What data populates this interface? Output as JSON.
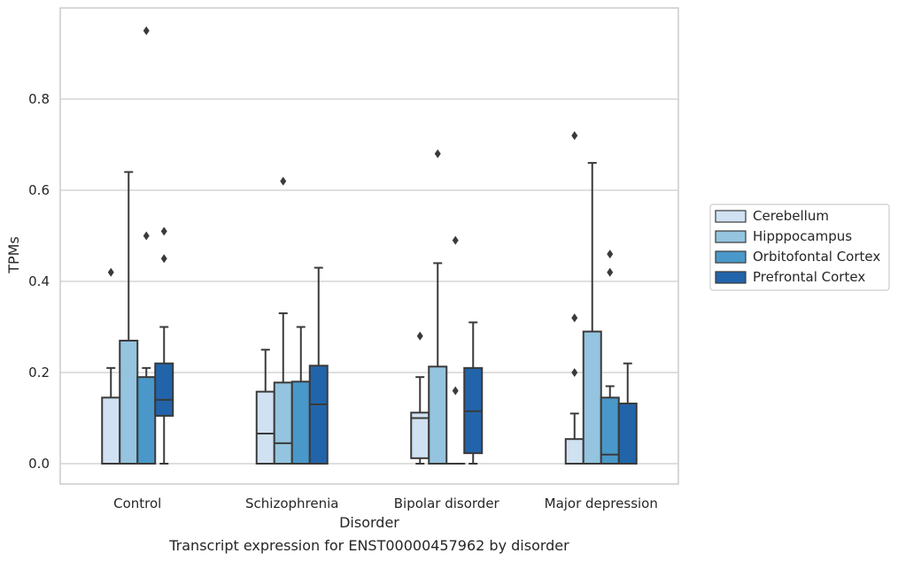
{
  "chart_data": {
    "type": "boxplot",
    "caption": "Transcript expression for ENST00000457962 by disorder",
    "xlabel": "Disorder",
    "ylabel": "TPMs",
    "ylim": [
      -0.045,
      0.995
    ],
    "yticks": [
      0.0,
      0.2,
      0.4,
      0.6,
      0.8
    ],
    "ytick_labels": [
      "0.0",
      "0.2",
      "0.4",
      "0.6",
      "0.8"
    ],
    "grid": "horizontal",
    "legend_position": "right",
    "categories": [
      "Control",
      "Schizophrenia",
      "Bipolar disorder",
      "Major depression"
    ],
    "series": [
      {
        "name": "Cerebellum",
        "color": "#d0e1f2",
        "boxes": [
          {
            "q1": 0.0,
            "median": 0.0,
            "q3": 0.145,
            "whisker_low": 0.0,
            "whisker_high": 0.21,
            "outliers": [
              0.42
            ]
          },
          {
            "q1": 0.0,
            "median": 0.066,
            "q3": 0.158,
            "whisker_low": 0.0,
            "whisker_high": 0.25,
            "outliers": []
          },
          {
            "q1": 0.012,
            "median": 0.1,
            "q3": 0.112,
            "whisker_low": 0.0,
            "whisker_high": 0.19,
            "outliers": [
              0.28
            ]
          },
          {
            "q1": 0.0,
            "median": 0.0,
            "q3": 0.054,
            "whisker_low": 0.0,
            "whisker_high": 0.11,
            "outliers": [
              0.2,
              0.32,
              0.72
            ]
          }
        ]
      },
      {
        "name": "Hipppocampus",
        "color": "#94c4df",
        "boxes": [
          {
            "q1": 0.0,
            "median": 0.0,
            "q3": 0.27,
            "whisker_low": 0.0,
            "whisker_high": 0.64,
            "outliers": []
          },
          {
            "q1": 0.0,
            "median": 0.045,
            "q3": 0.178,
            "whisker_low": 0.0,
            "whisker_high": 0.33,
            "outliers": [
              0.62
            ]
          },
          {
            "q1": 0.0,
            "median": 0.0,
            "q3": 0.213,
            "whisker_low": 0.0,
            "whisker_high": 0.44,
            "outliers": [
              0.68
            ]
          },
          {
            "q1": 0.0,
            "median": 0.0,
            "q3": 0.29,
            "whisker_low": 0.0,
            "whisker_high": 0.66,
            "outliers": []
          }
        ]
      },
      {
        "name": "Orbitofontal Cortex",
        "color": "#4a98c9",
        "boxes": [
          {
            "q1": 0.0,
            "median": 0.0,
            "q3": 0.19,
            "whisker_low": 0.0,
            "whisker_high": 0.21,
            "outliers": [
              0.5,
              0.95
            ]
          },
          {
            "q1": 0.0,
            "median": 0.0,
            "q3": 0.18,
            "whisker_low": 0.0,
            "whisker_high": 0.3,
            "outliers": []
          },
          {
            "q1": 0.0,
            "median": 0.0,
            "q3": 0.0,
            "whisker_low": 0.0,
            "whisker_high": 0.0,
            "outliers": [
              0.16,
              0.49
            ]
          },
          {
            "q1": 0.0,
            "median": 0.02,
            "q3": 0.145,
            "whisker_low": 0.0,
            "whisker_high": 0.17,
            "outliers": [
              0.42,
              0.46
            ]
          }
        ]
      },
      {
        "name": "Prefrontal Cortex",
        "color": "#2264aa",
        "boxes": [
          {
            "q1": 0.105,
            "median": 0.14,
            "q3": 0.22,
            "whisker_low": 0.0,
            "whisker_high": 0.3,
            "outliers": [
              0.45,
              0.51
            ]
          },
          {
            "q1": 0.0,
            "median": 0.13,
            "q3": 0.215,
            "whisker_low": 0.0,
            "whisker_high": 0.43,
            "outliers": []
          },
          {
            "q1": 0.023,
            "median": 0.115,
            "q3": 0.21,
            "whisker_low": 0.0,
            "whisker_high": 0.31,
            "outliers": []
          },
          {
            "q1": 0.0,
            "median": 0.0,
            "q3": 0.132,
            "whisker_low": 0.0,
            "whisker_high": 0.22,
            "outliers": []
          }
        ]
      }
    ]
  }
}
